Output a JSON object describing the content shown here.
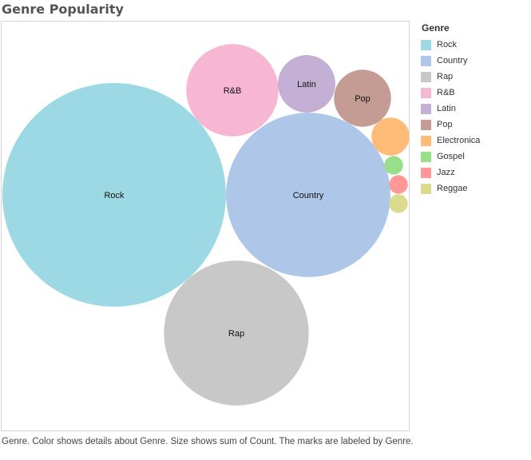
{
  "title": "Genre Popularity",
  "caption": "Genre.  Color shows details about Genre.  Size shows sum of Count.  The marks are labeled by Genre.",
  "legend": {
    "title": "Genre",
    "items": [
      {
        "label": "Rock",
        "color": "#9dd9e5"
      },
      {
        "label": "Country",
        "color": "#aec6e8"
      },
      {
        "label": "Rap",
        "color": "#c8c8c8"
      },
      {
        "label": "R&B",
        "color": "#f7b6d2"
      },
      {
        "label": "Latin",
        "color": "#c5b0d5"
      },
      {
        "label": "Pop",
        "color": "#c49c94"
      },
      {
        "label": "Electronica",
        "color": "#ffbb78"
      },
      {
        "label": "Gospel",
        "color": "#98df8a"
      },
      {
        "label": "Jazz",
        "color": "#ff9896"
      },
      {
        "label": "Reggae",
        "color": "#dbdb8d"
      }
    ]
  },
  "chart_data": {
    "type": "bubble",
    "size_measure": "sum of Count",
    "series": [
      {
        "genre": "Rock",
        "value": 100,
        "color": "#9dd9e5",
        "labeled": true
      },
      {
        "genre": "Country",
        "value": 54,
        "color": "#aec6e8",
        "labeled": true
      },
      {
        "genre": "Rap",
        "value": 42,
        "color": "#c8c8c8",
        "labeled": true
      },
      {
        "genre": "R&B",
        "value": 17,
        "color": "#f7b6d2",
        "labeled": true
      },
      {
        "genre": "Latin",
        "value": 6.6,
        "color": "#c5b0d5",
        "labeled": true
      },
      {
        "genre": "Pop",
        "value": 6.5,
        "color": "#c49c94",
        "labeled": true
      },
      {
        "genre": "Electronica",
        "value": 2.9,
        "color": "#ffbb78",
        "labeled": false
      },
      {
        "genre": "Gospel",
        "value": 0.7,
        "color": "#98df8a",
        "labeled": false
      },
      {
        "genre": "Jazz",
        "value": 0.7,
        "color": "#ff9896",
        "labeled": false
      },
      {
        "genre": "Reggae",
        "value": 0.7,
        "color": "#dbdb8d",
        "labeled": false
      }
    ]
  }
}
